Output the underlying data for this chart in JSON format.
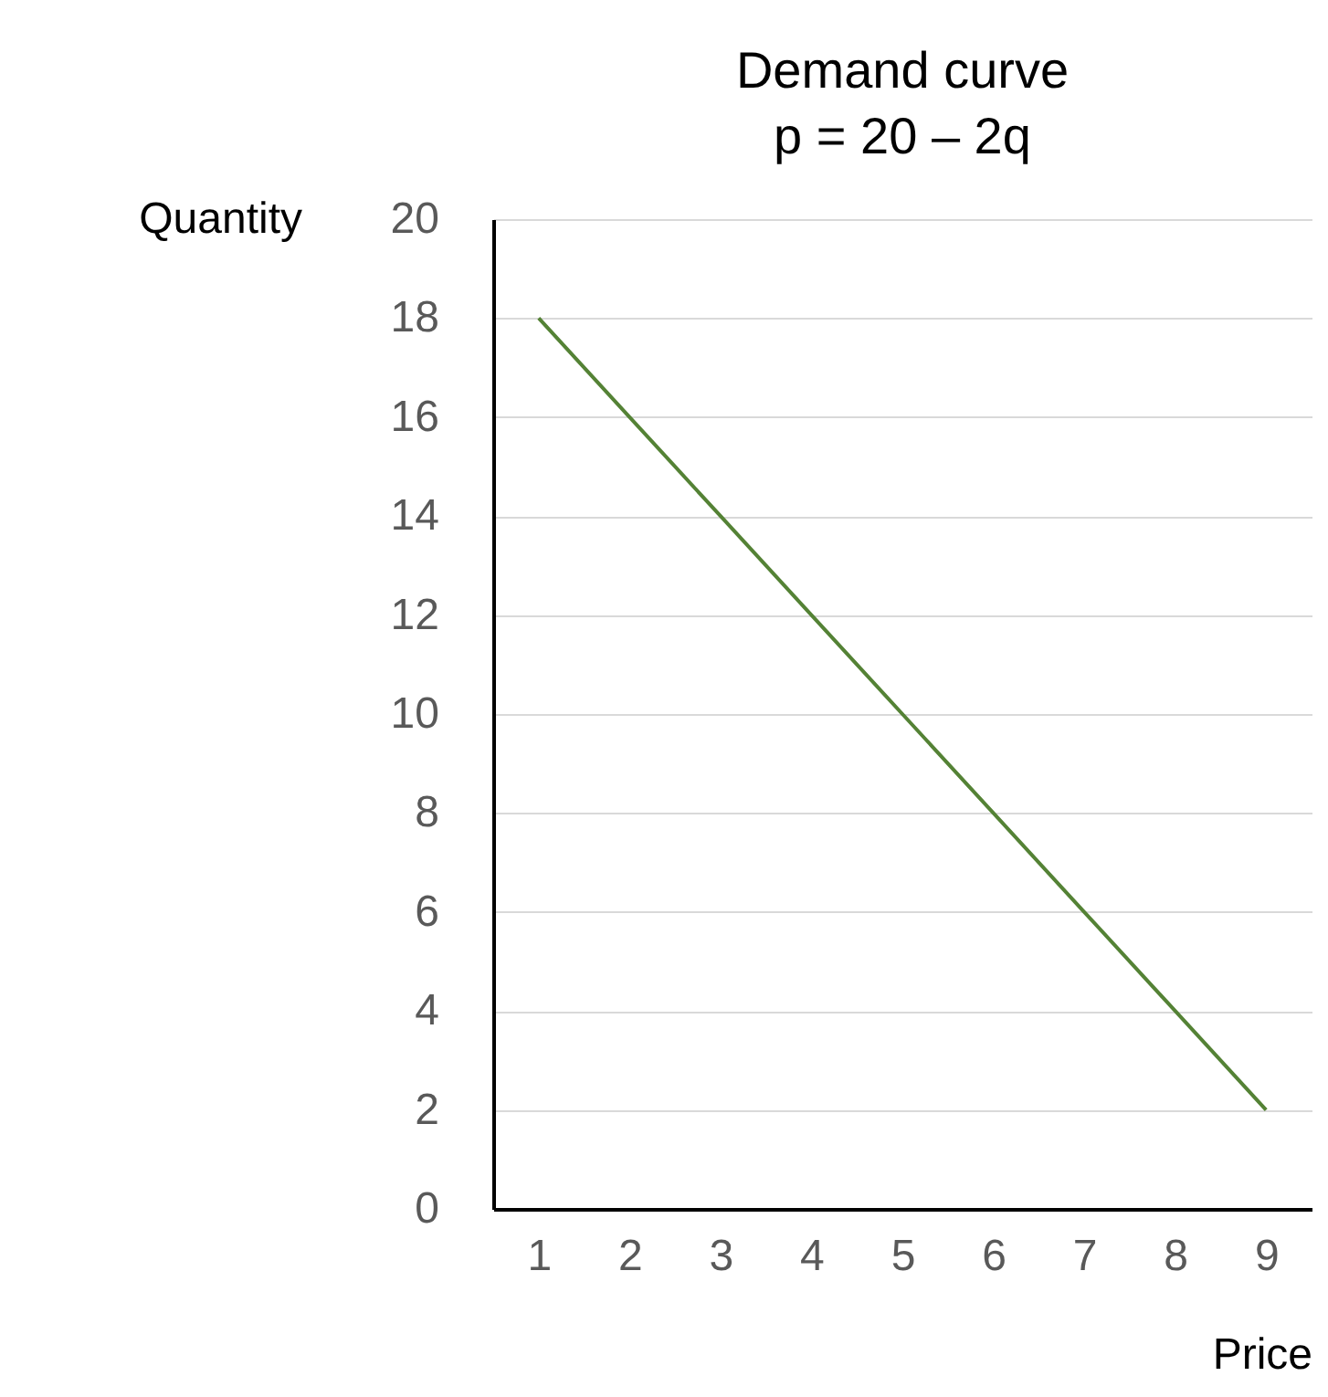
{
  "chart_data": {
    "type": "line",
    "title": "Demand curve",
    "subtitle": "p = 20 – 2q",
    "xlabel": "Price",
    "ylabel": "Quantity",
    "categories": [
      "1",
      "2",
      "3",
      "4",
      "5",
      "6",
      "7",
      "8",
      "9"
    ],
    "values": [
      18,
      16,
      14,
      12,
      10,
      8,
      6,
      4,
      2
    ],
    "color": "#548235",
    "ylim": [
      0,
      20
    ],
    "yticks": [
      0,
      2,
      4,
      6,
      8,
      10,
      12,
      14,
      16,
      18,
      20
    ],
    "grid": "y"
  }
}
